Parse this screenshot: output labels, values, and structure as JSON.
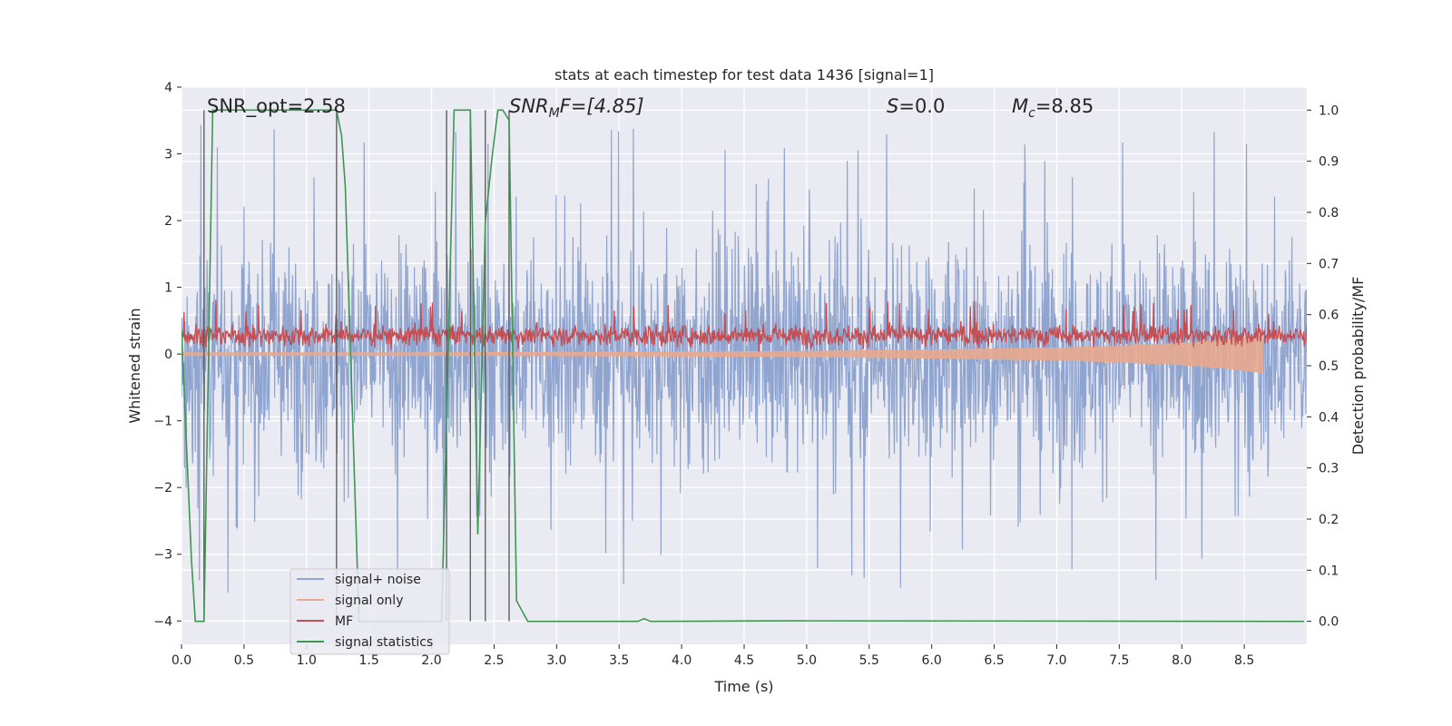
{
  "chart_data": {
    "type": "line",
    "title": "stats at each timestep for test data 1436 [signal=1]",
    "xlabel": "Time (s)",
    "ylabel": "Whitened strain",
    "y2label": "Detection probability/MF",
    "xlim": [
      0.0,
      9.0
    ],
    "ylim": [
      -4.35,
      4.0
    ],
    "y2lim": [
      -0.045,
      1.045
    ],
    "x_ticks": [
      0.0,
      0.5,
      1.0,
      1.5,
      2.0,
      2.5,
      3.0,
      3.5,
      4.0,
      4.5,
      5.0,
      5.5,
      6.0,
      6.5,
      7.0,
      7.5,
      8.0,
      8.5
    ],
    "x_tick_labels": [
      "0.0",
      "0.5",
      "1.0",
      "1.5",
      "2.0",
      "2.5",
      "3.0",
      "3.5",
      "4.0",
      "4.5",
      "5.0",
      "5.5",
      "6.0",
      "6.5",
      "7.0",
      "7.5",
      "8.0",
      "8.5"
    ],
    "y_ticks": [
      4,
      3,
      2,
      1,
      0,
      -1,
      -2,
      -3,
      -4
    ],
    "y_tick_labels": [
      "4",
      "3",
      "2",
      "1",
      "0",
      "−1",
      "−2",
      "−3",
      "−4"
    ],
    "y2_ticks": [
      1.0,
      0.9,
      0.8,
      0.7,
      0.6,
      0.5,
      0.4,
      0.3,
      0.2,
      0.1,
      0.0
    ],
    "y2_tick_labels": [
      "1.0",
      "0.9",
      "0.8",
      "0.7",
      "0.6",
      "0.5",
      "0.4",
      "0.3",
      "0.2",
      "0.1",
      "0.0"
    ],
    "grid": true,
    "legend_position": "lower-left",
    "annotations": {
      "snr_opt": "SNR_opt=2.58",
      "snr_mf_base": "SNR",
      "snr_mf_sub": "M",
      "snr_mf_rest": "F=[4.85]",
      "s_base": "S",
      "s_rest": "=0.0",
      "mc_base": "M",
      "mc_sub": "c",
      "mc_rest": "=8.85"
    },
    "vlines_x": [
      0.18,
      1.24,
      2.12,
      2.31,
      2.43,
      2.62
    ],
    "series": [
      {
        "name": "signal+ noise",
        "color": "#8fa4cf",
        "axis": "left",
        "envelope_note": "dense noise, mostly within about ±2, spikes to about ±3.6",
        "typical_amplitude": 2.1,
        "peak_amplitude": 3.6
      },
      {
        "name": "signal only",
        "color": "#e8a98e",
        "axis": "left",
        "x": [
          0.0,
          2.0,
          4.0,
          5.0,
          6.0,
          7.0,
          7.5,
          8.0,
          8.4,
          8.65
        ],
        "amplitude": [
          0.02,
          0.02,
          0.03,
          0.04,
          0.06,
          0.09,
          0.12,
          0.16,
          0.22,
          0.28
        ]
      },
      {
        "name": "MF",
        "color": "#c44e52",
        "axis": "left",
        "x_range": [
          0.0,
          9.0
        ],
        "baseline": 0.28,
        "band": [
          0.0,
          0.6
        ]
      },
      {
        "name": "signal statistics",
        "color": "#3e9651",
        "axis": "right",
        "x": [
          0.0,
          0.08,
          0.11,
          0.18,
          0.25,
          1.24,
          1.28,
          1.31,
          1.42,
          1.53,
          2.08,
          2.12,
          2.18,
          2.22,
          2.31,
          2.37,
          2.43,
          2.48,
          2.53,
          2.57,
          2.62,
          2.68,
          2.77,
          3.2,
          3.65,
          3.7,
          3.75,
          4.9,
          8.98
        ],
        "y": [
          0.57,
          0.12,
          0.0,
          0.0,
          1.0,
          1.0,
          0.95,
          0.85,
          0.0,
          0.0,
          0.0,
          0.4,
          1.0,
          1.0,
          1.0,
          0.17,
          0.78,
          0.9,
          1.0,
          1.0,
          0.98,
          0.04,
          0.0,
          0.0,
          0.0,
          0.005,
          0.0,
          0.001,
          0.0
        ]
      }
    ]
  }
}
